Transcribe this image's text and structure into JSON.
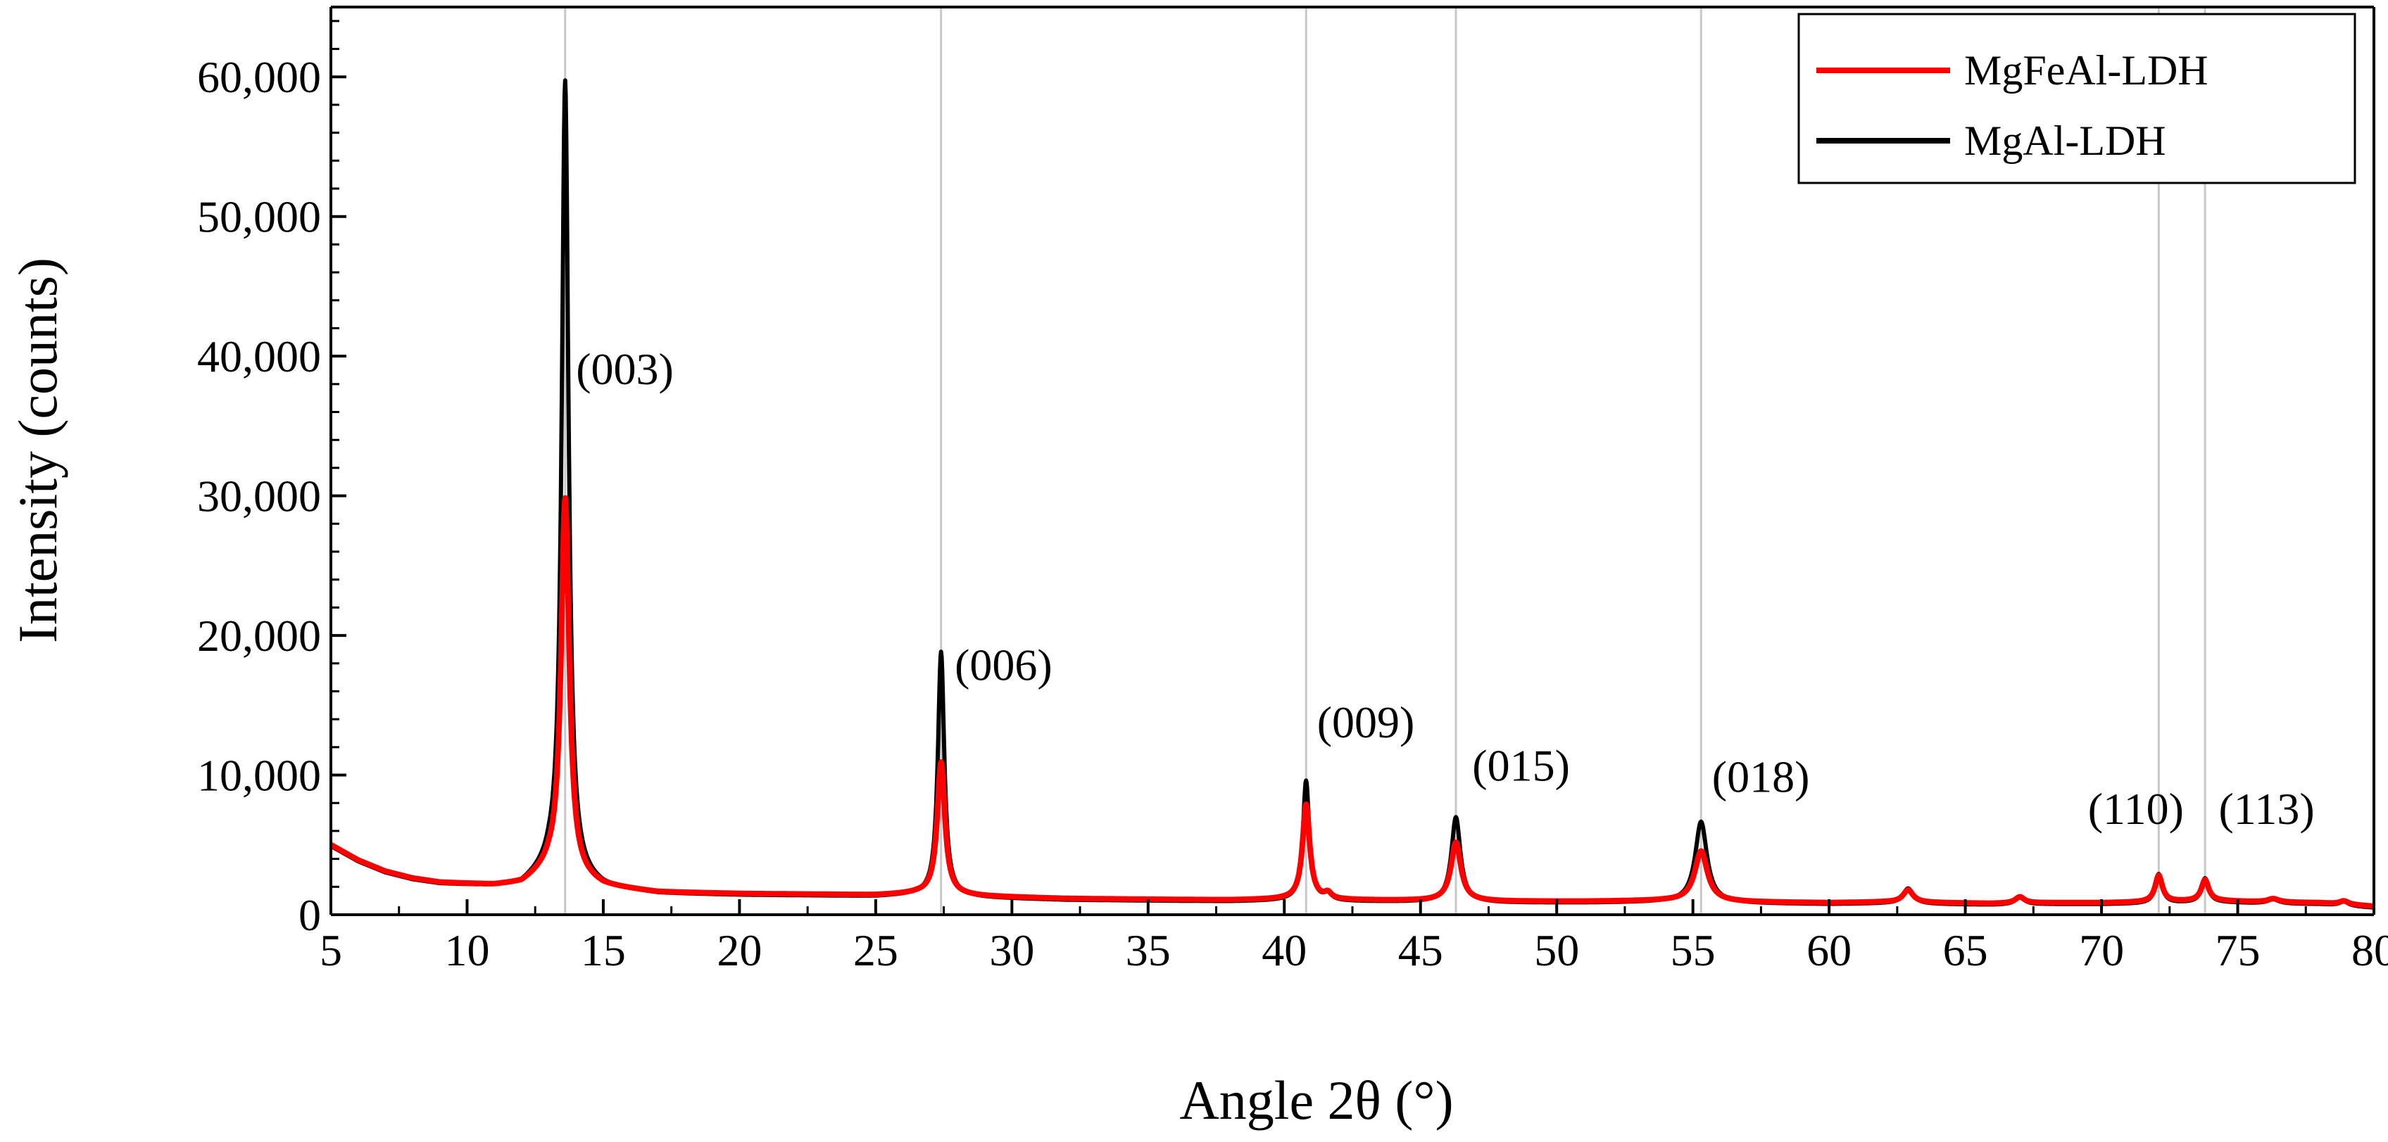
{
  "chart_data": {
    "type": "line",
    "xlabel": "Angle 2θ (°)",
    "ylabel": "Intensity (counts)",
    "xlim": [
      5,
      80
    ],
    "ylim": [
      0,
      65000
    ],
    "x_ticks": [
      5,
      10,
      15,
      20,
      25,
      30,
      35,
      40,
      45,
      50,
      55,
      60,
      65,
      70,
      75,
      80
    ],
    "y_ticks": [
      0,
      10000,
      20000,
      30000,
      40000,
      50000,
      60000
    ],
    "y_tick_labels": [
      "0",
      "10,000",
      "20,000",
      "30,000",
      "40,000",
      "50,000",
      "60,000"
    ],
    "reference_lines_x": [
      13.6,
      27.4,
      40.8,
      46.3,
      55.3,
      72.1,
      73.8
    ],
    "legend": {
      "placement": "top-right"
    },
    "annotations": [
      {
        "label": "(003)",
        "x": 14.0,
        "y": 38000
      },
      {
        "label": "(006)",
        "x": 27.9,
        "y": 16800
      },
      {
        "label": "(009)",
        "x": 41.2,
        "y": 12700
      },
      {
        "label": "(015)",
        "x": 46.9,
        "y": 9600
      },
      {
        "label": "(018)",
        "x": 55.7,
        "y": 8800
      },
      {
        "label": "(110)",
        "x": 69.5,
        "y": 6500
      },
      {
        "label": "(113)",
        "x": 74.3,
        "y": 6500
      }
    ],
    "series": [
      {
        "name": "MgFeAl-LDH",
        "color": "#ff0000",
        "baseline": [
          [
            5,
            5000
          ],
          [
            6,
            3900
          ],
          [
            7,
            3100
          ],
          [
            8,
            2600
          ],
          [
            9,
            2300
          ],
          [
            10,
            2200
          ],
          [
            11,
            2100
          ],
          [
            12,
            2200
          ],
          [
            13,
            3200
          ],
          [
            15,
            2000
          ],
          [
            17,
            1600
          ],
          [
            20,
            1500
          ],
          [
            23,
            1450
          ],
          [
            25,
            1400
          ],
          [
            26.5,
            1500
          ],
          [
            29,
            1300
          ],
          [
            32,
            1150
          ],
          [
            35,
            1100
          ],
          [
            38,
            1050
          ],
          [
            40,
            1100
          ],
          [
            42,
            1050
          ],
          [
            45,
            1000
          ],
          [
            48,
            950
          ],
          [
            51,
            950
          ],
          [
            54,
            1000
          ],
          [
            57,
            900
          ],
          [
            60,
            850
          ],
          [
            62,
            900
          ],
          [
            64,
            850
          ],
          [
            66,
            800
          ],
          [
            68,
            850
          ],
          [
            70,
            850
          ],
          [
            72,
            900
          ],
          [
            74,
            1000
          ],
          [
            76,
            900
          ],
          [
            78,
            850
          ],
          [
            80,
            600
          ]
        ],
        "peaks": [
          [
            13.6,
            27000,
            0.18
          ],
          [
            27.4,
            9500,
            0.17
          ],
          [
            40.8,
            6800,
            0.16
          ],
          [
            41.6,
            400,
            0.15
          ],
          [
            46.3,
            4200,
            0.22
          ],
          [
            55.3,
            3600,
            0.28
          ],
          [
            62.9,
            900,
            0.22
          ],
          [
            67.0,
            450,
            0.2
          ],
          [
            72.1,
            1900,
            0.16
          ],
          [
            73.8,
            1500,
            0.16
          ],
          [
            76.3,
            250,
            0.25
          ],
          [
            78.9,
            250,
            0.2
          ]
        ]
      },
      {
        "name": "MgAl-LDH",
        "color": "#000000",
        "baseline": [
          [
            5,
            4900
          ],
          [
            6,
            3800
          ],
          [
            7,
            3000
          ],
          [
            8,
            2500
          ],
          [
            9,
            2200
          ],
          [
            10,
            2100
          ],
          [
            11,
            2000
          ],
          [
            12,
            2100
          ],
          [
            13,
            3100
          ],
          [
            15,
            1900
          ],
          [
            17,
            1500
          ],
          [
            20,
            1400
          ],
          [
            23,
            1350
          ],
          [
            25,
            1300
          ],
          [
            26.5,
            1400
          ],
          [
            29,
            1200
          ],
          [
            32,
            1050
          ],
          [
            35,
            1000
          ],
          [
            38,
            950
          ],
          [
            40,
            1000
          ],
          [
            42,
            950
          ],
          [
            45,
            900
          ],
          [
            48,
            850
          ],
          [
            51,
            850
          ],
          [
            54,
            900
          ],
          [
            57,
            800
          ],
          [
            60,
            750
          ],
          [
            62,
            800
          ],
          [
            64,
            750
          ],
          [
            66,
            700
          ],
          [
            68,
            750
          ],
          [
            70,
            750
          ],
          [
            72,
            800
          ],
          [
            74,
            900
          ],
          [
            76,
            800
          ],
          [
            78,
            750
          ],
          [
            80,
            500
          ]
        ],
        "peaks": [
          [
            13.6,
            57000,
            0.15
          ],
          [
            27.4,
            17500,
            0.14
          ],
          [
            40.8,
            8600,
            0.14
          ],
          [
            41.6,
            500,
            0.15
          ],
          [
            46.3,
            6100,
            0.2
          ],
          [
            55.3,
            5800,
            0.26
          ],
          [
            62.9,
            1100,
            0.22
          ],
          [
            67.0,
            550,
            0.2
          ],
          [
            72.1,
            2100,
            0.15
          ],
          [
            73.8,
            1700,
            0.15
          ],
          [
            76.3,
            300,
            0.25
          ],
          [
            78.9,
            300,
            0.2
          ]
        ]
      }
    ]
  }
}
